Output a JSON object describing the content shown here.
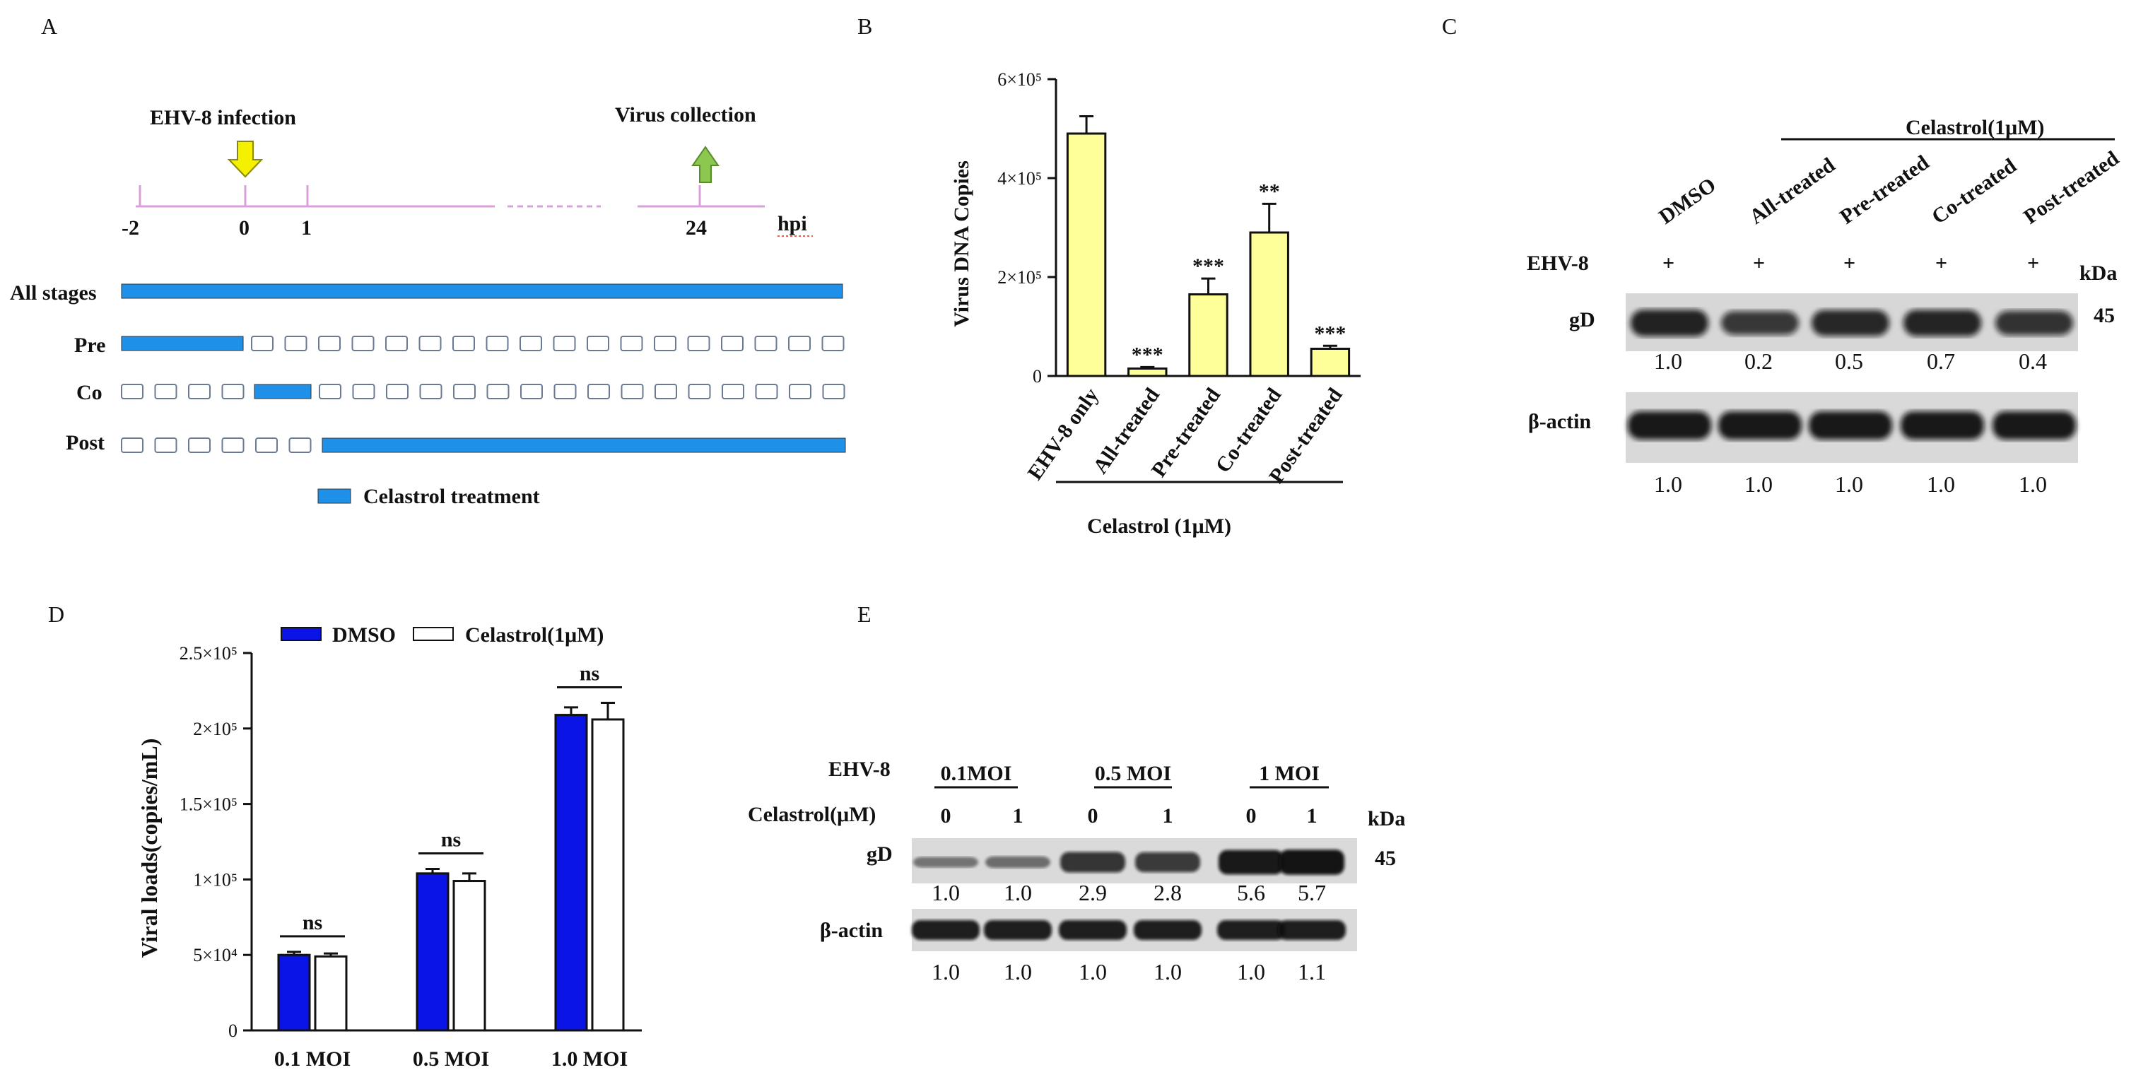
{
  "panels": {
    "a": "A",
    "b": "B",
    "c": "C",
    "d": "D",
    "e": "E"
  },
  "panel_a": {
    "infection_label": "EHV-8 infection",
    "collection_label": "Virus collection",
    "ticks": [
      "-2",
      "0",
      "1",
      "24"
    ],
    "unit": "hpi",
    "rows": [
      "All stages",
      "Pre",
      "Co",
      "Post"
    ],
    "legend": "Celastrol treatment",
    "colors": {
      "bar": "#1e90e8",
      "infection_arrow": "#f5f000",
      "collection_arrow": "#8cc850",
      "timeline": "#d8a0d8"
    }
  },
  "panel_b": {
    "chart_data": {
      "type": "bar",
      "ylabel": "Virus DNA Copies",
      "categories": [
        "EHV-8 only",
        "All-treated",
        "Pre-treated",
        "Co-treated",
        "Post-treated"
      ],
      "values": [
        490000,
        15000,
        165000,
        290000,
        55000
      ],
      "errors": [
        35000,
        3000,
        32000,
        58000,
        6000
      ],
      "significance": [
        "",
        "***",
        "***",
        "**",
        "***"
      ],
      "ylim": [
        0,
        600000
      ],
      "yticks": [
        "0",
        "2×10⁵",
        "4×10⁵",
        "6×10⁵"
      ],
      "group_label": "Celastrol (1μM)",
      "color": "#ffff99"
    }
  },
  "panel_c": {
    "group_label": "Celastrol(1μM)",
    "lanes": [
      "DMSO",
      "All-treated",
      "Pre-treated",
      "Co-treated",
      "Post-treated"
    ],
    "ehv_label": "EHV-8",
    "plus": "+",
    "kda": "kDa",
    "kda_value": "45",
    "gd_label": "gD",
    "actin_label": "β-actin",
    "gd_values": [
      "1.0",
      "0.2",
      "0.5",
      "0.7",
      "0.4"
    ],
    "actin_values": [
      "1.0",
      "1.0",
      "1.0",
      "1.0",
      "1.0"
    ],
    "gd_intensity": [
      0.9,
      0.7,
      0.85,
      0.88,
      0.75
    ]
  },
  "panel_d": {
    "chart_data": {
      "type": "bar",
      "ylabel": "Viral loads(copies/mL)",
      "categories": [
        "0.1 MOI",
        "0.5 MOI",
        "1.0 MOI"
      ],
      "series": [
        {
          "name": "DMSO",
          "values": [
            50000,
            104000,
            209000
          ],
          "errors": [
            2000,
            3000,
            5000
          ],
          "color": "#0a14e6"
        },
        {
          "name": "Celastrol(1μM)",
          "values": [
            49000,
            99000,
            206000
          ],
          "errors": [
            2000,
            5000,
            11000
          ],
          "color": "#ffffff"
        }
      ],
      "significance": [
        "ns",
        "ns",
        "ns"
      ],
      "ylim": [
        0,
        250000
      ],
      "yticks": [
        "0",
        "5×10⁴",
        "1×10⁵",
        "1.5×10⁵",
        "2×10⁵",
        "2.5×10⁵"
      ]
    }
  },
  "panel_e": {
    "ehv_label": "EHV-8",
    "celastrol_label": "Celastrol(μM)",
    "groups": [
      "0.1MOI",
      "0.5 MOI",
      "1 MOI"
    ],
    "doses": [
      "0",
      "1",
      "0",
      "1",
      "0",
      "1"
    ],
    "kda": "kDa",
    "kda_value": "45",
    "gd_label": "gD",
    "actin_label": "β-actin",
    "gd_values": [
      "1.0",
      "1.0",
      "2.9",
      "2.8",
      "5.6",
      "5.7"
    ],
    "actin_values": [
      "1.0",
      "1.0",
      "1.0",
      "1.0",
      "1.0",
      "1.1"
    ],
    "gd_intensity": [
      0.25,
      0.3,
      0.75,
      0.72,
      0.95,
      0.98
    ]
  }
}
